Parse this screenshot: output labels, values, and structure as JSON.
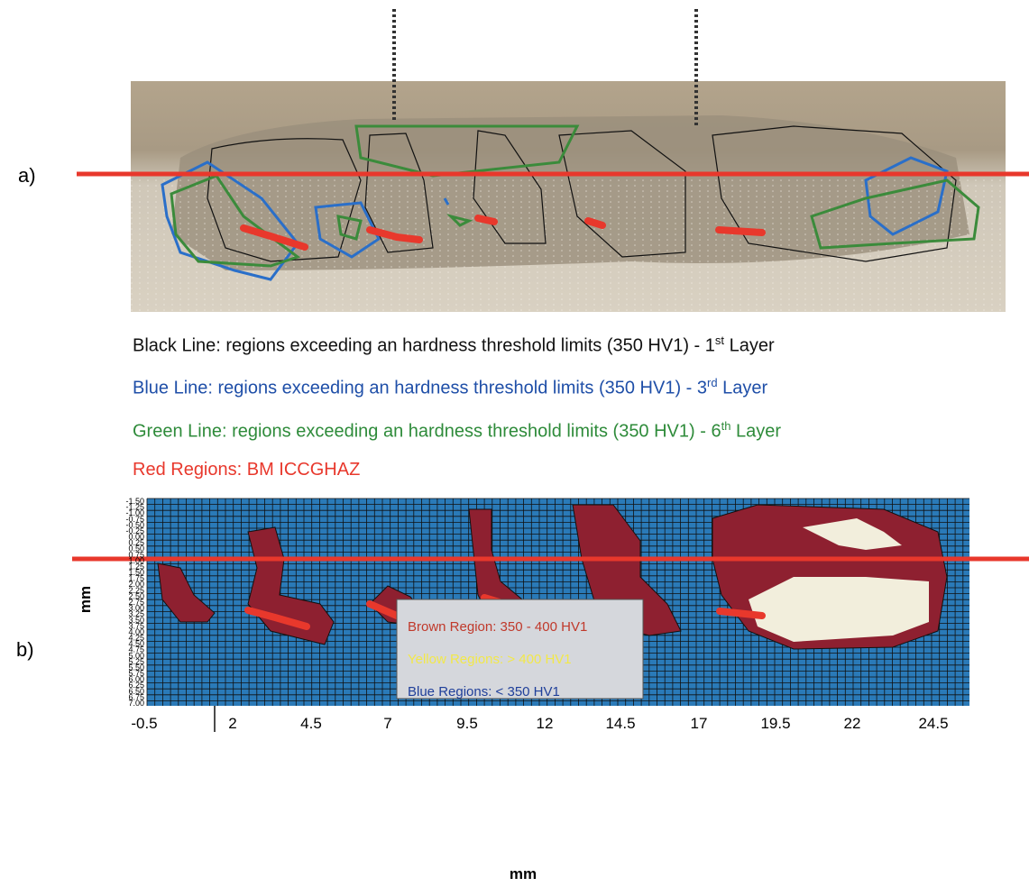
{
  "panel_a": {
    "label": "a)",
    "legend": [
      {
        "text": "Black Line: regions exceeding an hardness threshold limits (350 HV1) - 1",
        "sup": "st",
        "suffix": "Layer",
        "color": "#111111"
      },
      {
        "text": "Blue Line: regions exceeding an hardness threshold limits (350 HV1) - 3",
        "sup": "rd",
        "suffix": "Layer",
        "color": "#1f4fa8"
      },
      {
        "text": "Green Line: regions exceeding an hardness threshold limits (350 HV1) - 6",
        "sup": "th",
        "suffix": "Layer",
        "color": "#2e8b3a"
      },
      {
        "text": "Red Regions: BM ICCGHAZ",
        "color": "#e8382c"
      }
    ]
  },
  "panel_b": {
    "label": "b)",
    "y_axis_label": "mm",
    "x_axis_label": "mm",
    "y_ticks": [
      "-1.50",
      "-1.25",
      "-1.00",
      "-0.75",
      "-0.50",
      "-0.25",
      "0.00",
      "0.25",
      "0.50",
      "0.75",
      "1.00",
      "1.25",
      "1.50",
      "1.75",
      "2.00",
      "2.25",
      "2.50",
      "2.75",
      "3.00",
      "3.25",
      "3.50",
      "3.75",
      "4.00",
      "4.25",
      "4.50",
      "4.75",
      "5.00",
      "5.25",
      "5.50",
      "5.75",
      "6.00",
      "6.25",
      "6.50",
      "6.75",
      "7.00"
    ],
    "x_ticks": [
      "-0.5",
      "2",
      "4.5",
      "7",
      "9.5",
      "12",
      "14.5",
      "17",
      "19.5",
      "22",
      "24.5"
    ],
    "legend": [
      {
        "text": "Brown Region: 350 - 400 HV1",
        "color": "#c0392b"
      },
      {
        "text": "Yellow Regions: > 400 HV1",
        "color": "#f2e84a"
      },
      {
        "text": "Blue Regions: < 350 HV1",
        "color": "#1f3f9a"
      }
    ]
  }
}
